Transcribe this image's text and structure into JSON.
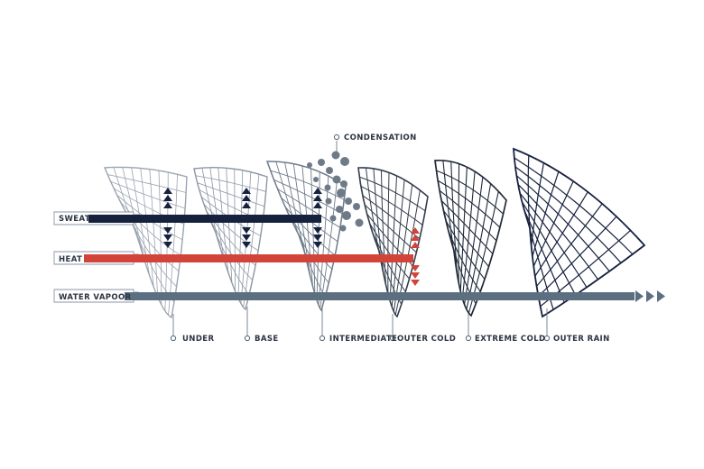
{
  "legend": {
    "flows": [
      {
        "label": "SWEAT",
        "color": "#16213e"
      },
      {
        "label": "HEAT",
        "color": "#d2443a"
      },
      {
        "label": "WATER VAPOOR",
        "color": "#5b6f80"
      }
    ],
    "condensation_label": "CONDENSATION"
  },
  "layers": [
    {
      "label": "UNDER"
    },
    {
      "label": "BASE"
    },
    {
      "label": "INTERMEDIATE"
    },
    {
      "label": "OUTER COLD"
    },
    {
      "label": "EXTREME COLD"
    },
    {
      "label": "OUTER RAIN"
    }
  ],
  "colors": {
    "navy": "#16213e",
    "red": "#d2443a",
    "slate": "#5b6f80",
    "text": "#2b3442",
    "mesh_light": "#9aa4b0"
  }
}
